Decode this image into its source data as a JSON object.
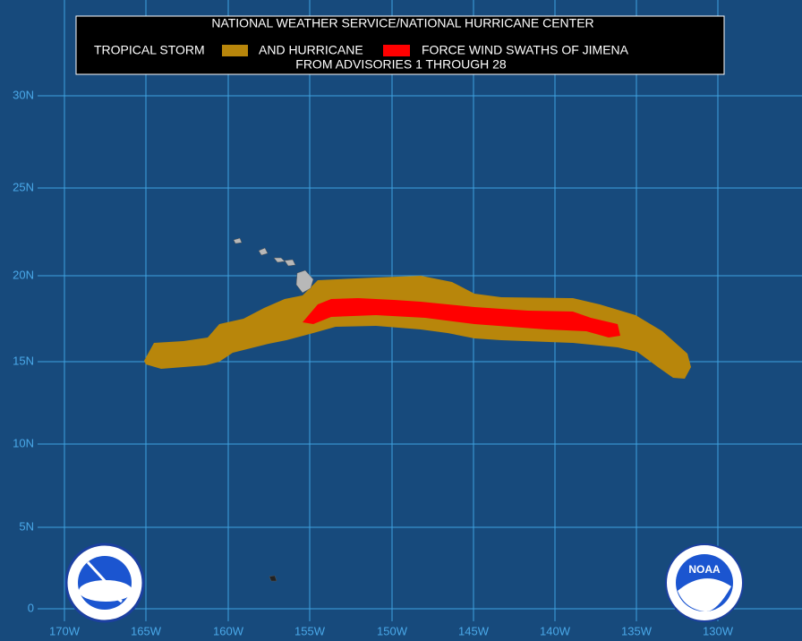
{
  "header": {
    "line1": "NATIONAL WEATHER SERVICE/NATIONAL HURRICANE CENTER",
    "legend": [
      {
        "label": "TROPICAL STORM",
        "color": "#b8860b"
      },
      {
        "label": "AND HURRICANE",
        "color": "#ff0000"
      }
    ],
    "trailing": "FORCE WIND SWATHS OF JIMENA",
    "line3": "FROM ADVISORIES 1 THROUGH 28"
  },
  "map": {
    "latitude_labels": [
      "30N",
      "25N",
      "20N",
      "15N",
      "10N",
      "5N",
      "0"
    ],
    "longitude_labels": [
      "170W",
      "165W",
      "160W",
      "155W",
      "150W",
      "145W",
      "140W",
      "135W",
      "130W"
    ],
    "noaa_logo": "NOAA"
  }
}
